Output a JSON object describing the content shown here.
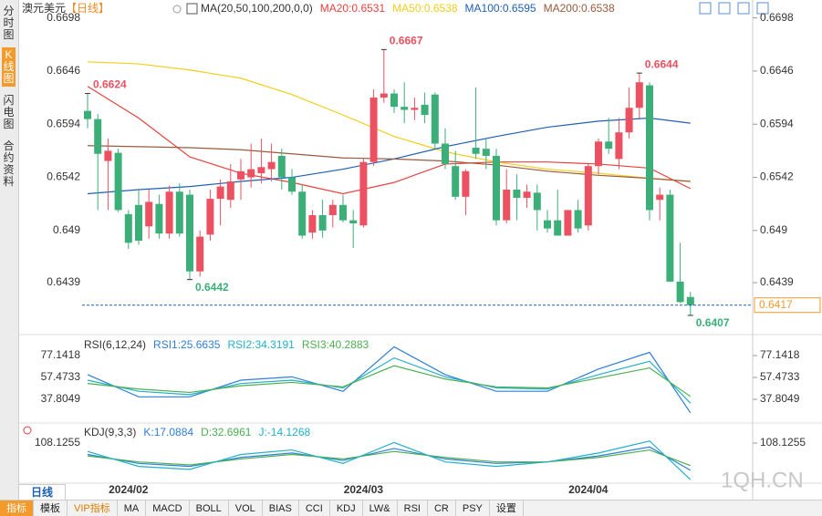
{
  "header": {
    "symbol": "澳元美元",
    "period": "【日线】"
  },
  "sidebar": [
    "分时图",
    "K线图",
    "闪电图",
    "合约资料"
  ],
  "period_tab": "日线",
  "toolbar": [
    "指标",
    "模板",
    "VIP指标",
    "MA",
    "MACD",
    "BOLL",
    "VOL",
    "BIAS",
    "CCI",
    "KDJ",
    "LW&",
    "RSI",
    "CR",
    "PSY",
    "设置"
  ],
  "watermark": "1QH.CN",
  "chart_data": [
    {
      "type": "candlestick",
      "legend": "MA(20,50,100,200,0,0)",
      "up_color": "#eb5160",
      "down_color": "#3caf78",
      "open": [
        0.6607,
        0.6599,
        0.6558,
        0.6566,
        0.6506,
        0.6515,
        0.6494,
        0.6516,
        0.6487,
        0.6528,
        0.6525,
        0.645,
        0.6486,
        0.6521,
        0.652,
        0.654,
        0.6542,
        0.6546,
        0.655,
        0.6563,
        0.6542,
        0.6528,
        0.6488,
        0.6505,
        0.6505,
        0.6515,
        0.65,
        0.6495,
        0.6557,
        0.662,
        0.6624,
        0.6611,
        0.6608,
        0.6613,
        0.6623,
        0.6575,
        0.6553,
        0.6523,
        0.6571,
        0.657,
        0.6563,
        0.65,
        0.653,
        0.6522,
        0.6527,
        0.65,
        0.65,
        0.6485,
        0.651,
        0.6495,
        0.6553,
        0.6577,
        0.656,
        0.6586,
        0.661,
        0.6632,
        0.652,
        0.6525,
        0.644,
        0.6425
      ],
      "high": [
        0.6624,
        0.6604,
        0.658,
        0.657,
        0.651,
        0.653,
        0.653,
        0.6525,
        0.6534,
        0.6536,
        0.653,
        0.649,
        0.653,
        0.654,
        0.6555,
        0.656,
        0.6575,
        0.658,
        0.6575,
        0.657,
        0.655,
        0.6535,
        0.651,
        0.652,
        0.652,
        0.6525,
        0.651,
        0.656,
        0.6628,
        0.6667,
        0.6628,
        0.6635,
        0.662,
        0.6625,
        0.6625,
        0.659,
        0.6568,
        0.655,
        0.663,
        0.658,
        0.657,
        0.655,
        0.6545,
        0.6535,
        0.6535,
        0.651,
        0.653,
        0.651,
        0.652,
        0.6555,
        0.658,
        0.66,
        0.66,
        0.663,
        0.6644,
        0.6635,
        0.6532,
        0.653,
        0.6478,
        0.643
      ],
      "low": [
        0.659,
        0.651,
        0.651,
        0.6508,
        0.6472,
        0.6476,
        0.6482,
        0.6482,
        0.6482,
        0.6484,
        0.6442,
        0.6445,
        0.648,
        0.6495,
        0.6512,
        0.652,
        0.6532,
        0.6536,
        0.6538,
        0.653,
        0.6525,
        0.6482,
        0.6482,
        0.6483,
        0.6493,
        0.6498,
        0.6473,
        0.6493,
        0.6553,
        0.6615,
        0.6605,
        0.6595,
        0.6598,
        0.6595,
        0.657,
        0.655,
        0.652,
        0.6505,
        0.656,
        0.655,
        0.6495,
        0.6497,
        0.65,
        0.6512,
        0.649,
        0.6488,
        0.6485,
        0.6485,
        0.6488,
        0.649,
        0.6545,
        0.6565,
        0.655,
        0.658,
        0.66,
        0.65,
        0.65,
        0.644,
        0.6419,
        0.6407
      ],
      "close": [
        0.6599,
        0.6565,
        0.6568,
        0.651,
        0.6478,
        0.648,
        0.6518,
        0.6487,
        0.6528,
        0.6487,
        0.645,
        0.6484,
        0.6521,
        0.6533,
        0.6538,
        0.6548,
        0.655,
        0.6552,
        0.6557,
        0.6542,
        0.6528,
        0.6485,
        0.6505,
        0.649,
        0.6515,
        0.65,
        0.6497,
        0.6557,
        0.662,
        0.6624,
        0.6611,
        0.6608,
        0.661,
        0.6603,
        0.6575,
        0.6555,
        0.6523,
        0.6548,
        0.6565,
        0.6563,
        0.65,
        0.653,
        0.6522,
        0.6528,
        0.651,
        0.6492,
        0.6485,
        0.651,
        0.6492,
        0.6553,
        0.6577,
        0.657,
        0.6586,
        0.661,
        0.6635,
        0.651,
        0.6525,
        0.644,
        0.642,
        0.6417
      ],
      "series": [
        {
          "name": "MA20:0.6531",
          "color": "#e8423f",
          "x": [
            0,
            5,
            10,
            15,
            20,
            25,
            30,
            35,
            40,
            45,
            50,
            55,
            59
          ],
          "values": [
            0.6631,
            0.66,
            0.6562,
            0.6546,
            0.6537,
            0.6526,
            0.6537,
            0.6555,
            0.6557,
            0.6557,
            0.6555,
            0.6551,
            0.6531
          ]
        },
        {
          "name": "MA50:0.6538",
          "color": "#f2cf1a",
          "x": [
            0,
            5,
            10,
            15,
            20,
            25,
            30,
            35,
            40,
            45,
            50,
            55,
            59
          ],
          "values": [
            0.6655,
            0.6653,
            0.6647,
            0.6639,
            0.6623,
            0.6603,
            0.6582,
            0.6567,
            0.6557,
            0.655,
            0.6546,
            0.6541,
            0.6538
          ]
        },
        {
          "name": "MA100:0.6595",
          "color": "#1f5fb4",
          "x": [
            0,
            5,
            10,
            15,
            20,
            25,
            30,
            35,
            40,
            45,
            50,
            55,
            59
          ],
          "values": [
            0.6526,
            0.653,
            0.6533,
            0.6538,
            0.6542,
            0.655,
            0.656,
            0.6572,
            0.6582,
            0.6591,
            0.6597,
            0.66,
            0.6595
          ]
        },
        {
          "name": "MA200:0.6538",
          "color": "#9b5a3c",
          "x": [
            0,
            5,
            10,
            15,
            20,
            25,
            30,
            35,
            40,
            45,
            50,
            55,
            59
          ],
          "values": [
            0.6573,
            0.6572,
            0.6571,
            0.6569,
            0.6565,
            0.6561,
            0.656,
            0.6558,
            0.6554,
            0.6548,
            0.6544,
            0.6541,
            0.6538
          ]
        }
      ],
      "annotations": [
        {
          "candle": 0,
          "value": 0.6624
        },
        {
          "candle": 29,
          "value": 0.6667
        },
        {
          "candle": 10,
          "value": 0.6442
        },
        {
          "candle": 54,
          "value": 0.6644
        },
        {
          "candle": 59,
          "value": 0.6407
        }
      ],
      "current_price": 0.6417,
      "date_labels": [
        {
          "candle": 4,
          "label": "2024/02"
        },
        {
          "candle": 27,
          "label": "2024/03"
        },
        {
          "candle": 49,
          "label": "2024/04"
        }
      ],
      "ylim": [
        0.639,
        0.6711
      ],
      "yticks": [
        0.6698,
        0.6646,
        0.6594,
        0.6542,
        0.649,
        0.6439
      ]
    },
    {
      "type": "line",
      "legend": "RSI(6,12,24)",
      "ylim": [
        18.1,
        91.9
      ],
      "yticks": [
        77.1418,
        57.4733,
        37.8049
      ],
      "series": [
        {
          "name": "RSI1:25.6635",
          "color": "#2f7ed8",
          "x": [
            0,
            5,
            10,
            15,
            20,
            25,
            30,
            35,
            40,
            45,
            50,
            55,
            59
          ],
          "values": [
            60,
            40,
            40,
            55,
            58,
            45,
            85,
            60,
            45,
            45,
            65,
            80,
            25.6635
          ]
        },
        {
          "name": "RSI2:34.3191",
          "color": "#22b0c8",
          "x": [
            0,
            5,
            10,
            15,
            20,
            25,
            30,
            35,
            40,
            45,
            50,
            55,
            59
          ],
          "values": [
            55,
            45,
            42,
            52,
            55,
            48,
            75,
            58,
            48,
            47,
            60,
            72,
            34.3191
          ]
        },
        {
          "name": "RSI3:40.2883",
          "color": "#4caf50",
          "x": [
            0,
            5,
            10,
            15,
            20,
            25,
            30,
            35,
            40,
            45,
            50,
            55,
            59
          ],
          "values": [
            52,
            47,
            44,
            50,
            53,
            49,
            68,
            56,
            49,
            48,
            57,
            66,
            40.2883
          ]
        }
      ]
    },
    {
      "type": "line",
      "legend": "KDJ(9,3,3)",
      "ylim": [
        -20,
        163
      ],
      "yticks": [
        108.1255
      ],
      "series": [
        {
          "name": "K:17.0884",
          "color": "#2f7ed8",
          "x": [
            0,
            5,
            10,
            15,
            20,
            25,
            30,
            35,
            40,
            45,
            50,
            55,
            59
          ],
          "values": [
            70,
            40,
            30,
            60,
            75,
            50,
            90,
            55,
            40,
            45,
            65,
            95,
            17.0884
          ]
        },
        {
          "name": "D:32.6961",
          "color": "#4caf50",
          "x": [
            0,
            5,
            10,
            15,
            20,
            25,
            30,
            35,
            40,
            45,
            50,
            55,
            59
          ],
          "values": [
            65,
            45,
            35,
            55,
            70,
            55,
            80,
            60,
            45,
            45,
            60,
            85,
            32.6961
          ]
        },
        {
          "name": "J:-14.1268",
          "color": "#22b0c8",
          "x": [
            0,
            5,
            10,
            15,
            20,
            25,
            30,
            35,
            40,
            45,
            50,
            55,
            59
          ],
          "values": [
            80,
            30,
            20,
            70,
            85,
            40,
            110,
            45,
            30,
            45,
            75,
            115,
            -14.1268
          ]
        }
      ]
    }
  ]
}
